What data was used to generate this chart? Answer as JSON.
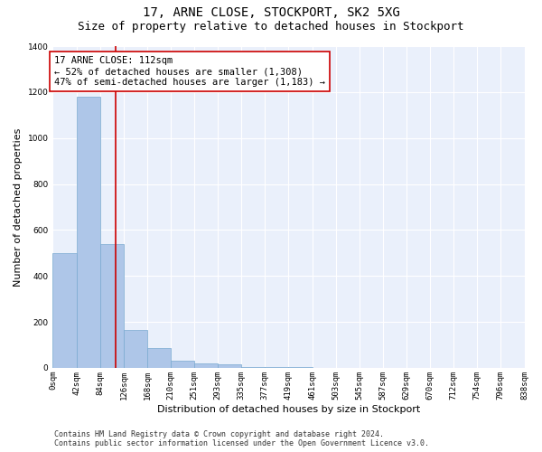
{
  "title": "17, ARNE CLOSE, STOCKPORT, SK2 5XG",
  "subtitle": "Size of property relative to detached houses in Stockport",
  "xlabel": "Distribution of detached houses by size in Stockport",
  "ylabel": "Number of detached properties",
  "bar_values": [
    500,
    1180,
    540,
    165,
    85,
    30,
    20,
    15,
    5,
    2,
    2,
    1,
    0,
    0,
    0,
    0,
    0,
    0,
    0,
    0
  ],
  "bin_edges": [
    0,
    42,
    84,
    126,
    168,
    210,
    251,
    293,
    335,
    377,
    419,
    461,
    503,
    545,
    587,
    629,
    670,
    712,
    754,
    796,
    838
  ],
  "bar_color": "#aec6e8",
  "bar_edge_color": "#7aaad0",
  "background_color": "#eaf0fb",
  "grid_color": "#ffffff",
  "property_line_x": 112,
  "property_line_color": "#cc0000",
  "annotation_text": "17 ARNE CLOSE: 112sqm\n← 52% of detached houses are smaller (1,308)\n47% of semi-detached houses are larger (1,183) →",
  "annotation_box_color": "#ffffff",
  "annotation_box_edge": "#cc0000",
  "ylim": [
    0,
    1400
  ],
  "yticks": [
    0,
    200,
    400,
    600,
    800,
    1000,
    1200,
    1400
  ],
  "tick_labels": [
    "0sqm",
    "42sqm",
    "84sqm",
    "126sqm",
    "168sqm",
    "210sqm",
    "251sqm",
    "293sqm",
    "335sqm",
    "377sqm",
    "419sqm",
    "461sqm",
    "503sqm",
    "545sqm",
    "587sqm",
    "629sqm",
    "670sqm",
    "712sqm",
    "754sqm",
    "796sqm",
    "838sqm"
  ],
  "footer_line1": "Contains HM Land Registry data © Crown copyright and database right 2024.",
  "footer_line2": "Contains public sector information licensed under the Open Government Licence v3.0.",
  "title_fontsize": 10,
  "subtitle_fontsize": 9,
  "axis_label_fontsize": 8,
  "tick_fontsize": 6.5,
  "annotation_fontsize": 7.5,
  "footer_fontsize": 6
}
